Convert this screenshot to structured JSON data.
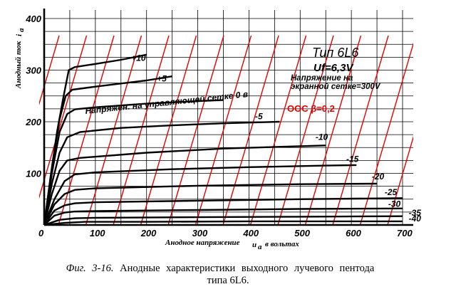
{
  "chart_data": {
    "type": "line",
    "xlabel": "Анодное напряжение",
    "xlabel_symbol": "u",
    "xlabel_subscript": "a",
    "xlabel_unit": "в вольтах",
    "ylabel": "Анодный ток",
    "ylabel_symbol": "i",
    "ylabel_subscript": "a",
    "xlim": [
      0,
      700
    ],
    "ylim": [
      0,
      400
    ],
    "x_ticks": [
      0,
      100,
      200,
      300,
      400,
      500,
      600,
      700
    ],
    "y_ticks": [
      100,
      200,
      300,
      400
    ],
    "grid": true,
    "series": [
      {
        "name": "+10",
        "label_at": [
          170,
          318
        ],
        "points": [
          [
            0,
            0
          ],
          [
            12,
            90
          ],
          [
            25,
            180
          ],
          [
            38,
            250
          ],
          [
            48,
            300
          ],
          [
            60,
            306
          ],
          [
            100,
            312
          ],
          [
            150,
            320
          ],
          [
            200,
            330
          ]
        ]
      },
      {
        "name": "+5",
        "label_at": [
          220,
          278
        ],
        "points": [
          [
            0,
            0
          ],
          [
            15,
            110
          ],
          [
            30,
            205
          ],
          [
            42,
            250
          ],
          [
            55,
            262
          ],
          [
            100,
            268
          ],
          [
            150,
            274
          ],
          [
            200,
            280
          ],
          [
            250,
            288
          ]
        ]
      },
      {
        "name": "0",
        "points": [
          [
            0,
            0
          ],
          [
            15,
            100
          ],
          [
            30,
            180
          ],
          [
            45,
            215
          ],
          [
            60,
            224
          ],
          [
            100,
            228
          ],
          [
            200,
            235
          ],
          [
            300,
            240
          ],
          [
            350,
            242
          ]
        ]
      },
      {
        "name": "-5",
        "label_at": [
          412,
          205
        ],
        "points": [
          [
            0,
            0
          ],
          [
            15,
            80
          ],
          [
            30,
            140
          ],
          [
            45,
            170
          ],
          [
            70,
            180
          ],
          [
            150,
            188
          ],
          [
            250,
            193
          ],
          [
            350,
            197
          ],
          [
            460,
            200
          ]
        ]
      },
      {
        "name": "-10",
        "label_at": [
          530,
          165
        ],
        "points": [
          [
            0,
            0
          ],
          [
            15,
            60
          ],
          [
            30,
            105
          ],
          [
            45,
            125
          ],
          [
            70,
            130
          ],
          [
            200,
            140
          ],
          [
            350,
            148
          ],
          [
            480,
            152
          ],
          [
            550,
            154
          ]
        ]
      },
      {
        "name": "-15",
        "label_at": [
          590,
          122
        ],
        "points": [
          [
            0,
            0
          ],
          [
            20,
            50
          ],
          [
            40,
            85
          ],
          [
            60,
            98
          ],
          [
            100,
            102
          ],
          [
            250,
            108
          ],
          [
            400,
            112
          ],
          [
            550,
            115
          ],
          [
            610,
            116
          ]
        ]
      },
      {
        "name": "-20",
        "label_at": [
          640,
          88
        ],
        "points": [
          [
            0,
            0
          ],
          [
            20,
            40
          ],
          [
            40,
            60
          ],
          [
            60,
            68
          ],
          [
            100,
            71
          ],
          [
            300,
            76
          ],
          [
            500,
            79
          ],
          [
            650,
            80
          ]
        ]
      },
      {
        "name": "-25",
        "label_at": [
          665,
          58
        ],
        "points": [
          [
            0,
            0
          ],
          [
            20,
            28
          ],
          [
            40,
            38
          ],
          [
            60,
            42
          ],
          [
            100,
            44
          ],
          [
            300,
            47
          ],
          [
            500,
            50
          ],
          [
            700,
            52
          ]
        ]
      },
      {
        "name": "-30",
        "label_at": [
          672,
          35
        ],
        "points": [
          [
            0,
            0
          ],
          [
            20,
            18
          ],
          [
            40,
            24
          ],
          [
            60,
            26
          ],
          [
            100,
            27
          ],
          [
            300,
            29
          ],
          [
            500,
            31
          ],
          [
            700,
            32
          ]
        ]
      },
      {
        "name": "-35",
        "label_at": [
          712,
          18
        ],
        "points": [
          [
            0,
            0
          ],
          [
            30,
            10
          ],
          [
            60,
            13
          ],
          [
            100,
            14
          ],
          [
            300,
            15
          ],
          [
            500,
            16
          ],
          [
            700,
            17
          ]
        ]
      },
      {
        "name": "-40",
        "label_at": [
          712,
          7
        ],
        "points": [
          [
            0,
            0
          ],
          [
            40,
            4
          ],
          [
            80,
            6
          ],
          [
            200,
            6
          ],
          [
            400,
            7
          ],
          [
            700,
            7
          ]
        ]
      }
    ],
    "grid_zero_label": "Напряжен. на управляющей сетке 0 в",
    "info_title": "Тип 6L6",
    "info_uf": "Uf=6,3V",
    "info_screen_1": "Напряжение на",
    "info_screen_2": "экранной сетке=300V",
    "annotation": "ООС  β=0,2",
    "colors": {
      "curves": "#000000",
      "grid": "#000000",
      "feedback": "#e60000"
    }
  },
  "caption": {
    "lead": "Фиг. 3-16.",
    "text": "Анодные  характеристики  выходного  лучевого  пентода",
    "line2": "типа 6L6."
  }
}
